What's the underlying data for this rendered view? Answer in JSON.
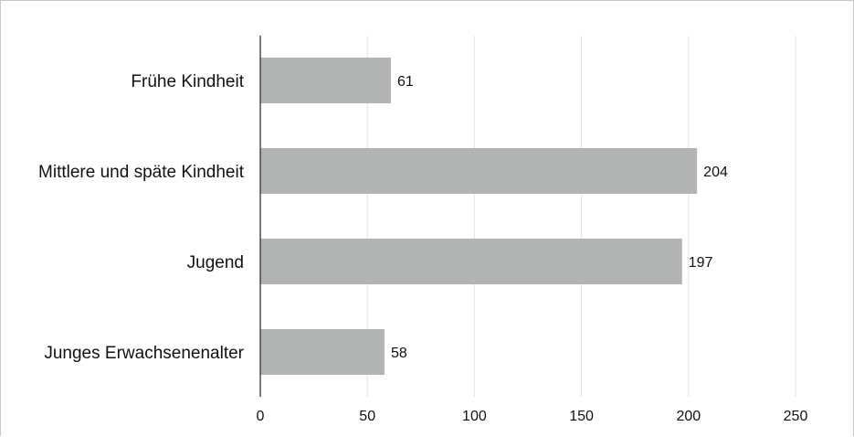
{
  "chart_data": {
    "type": "bar",
    "orientation": "horizontal",
    "categories": [
      "Frühe Kindheit",
      "Mittlere und späte Kindheit",
      "Jugend",
      "Junges Erwachsenenalter"
    ],
    "values": [
      61,
      204,
      197,
      58
    ],
    "value_labels": [
      "61",
      "204",
      "197",
      "58"
    ],
    "xlim": [
      0,
      250
    ],
    "x_ticks": [
      0,
      50,
      100,
      150,
      200,
      250
    ],
    "x_tick_labels": [
      "0",
      "50",
      "100",
      "150",
      "200",
      "250"
    ],
    "grid": "vertical",
    "legend": "none",
    "colors": {
      "bar": "#b2b4b4",
      "grid": "#e3e3e3",
      "axis": "#222222",
      "text": "#111111"
    }
  }
}
